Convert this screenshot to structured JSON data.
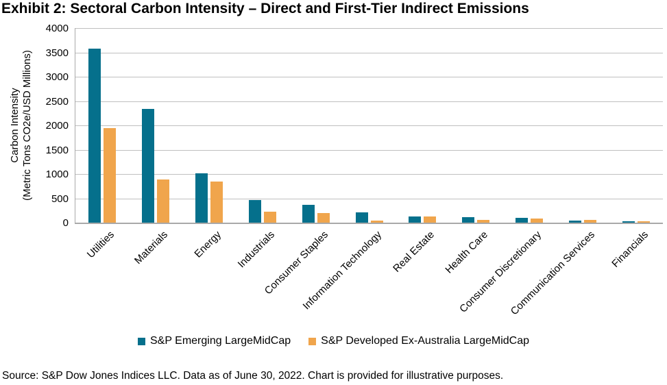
{
  "title": "Exhibit 2: Sectoral Carbon Intensity – Direct and First-Tier Indirect Emissions",
  "source_note": "Source: S&P Dow Jones Indices LLC. Data as of June 30, 2022. Chart is provided for illustrative purposes.",
  "chart_data": {
    "type": "bar",
    "title": "Exhibit 2: Sectoral Carbon Intensity – Direct and First-Tier Indirect Emissions",
    "ylabel_line1": "Carbon Intensity",
    "ylabel_line2": "(Metric Tons CO2e/USD Millions)",
    "xlabel": "",
    "ylim": [
      0,
      4000
    ],
    "yticks": [
      0,
      500,
      1000,
      1500,
      2000,
      2500,
      3000,
      3500,
      4000
    ],
    "grid": true,
    "legend_position": "bottom",
    "categories": [
      "Utilities",
      "Materials",
      "Energy",
      "Industrials",
      "Consumer Staples",
      "Information Technology",
      "Real Estate",
      "Health Care",
      "Consumer Discretionary",
      "Communication Services",
      "Financials"
    ],
    "series": [
      {
        "name": "S&P Emerging LargeMidCap",
        "color": "#05708C",
        "values": [
          3580,
          2340,
          1010,
          465,
          365,
          215,
          125,
          110,
          95,
          40,
          25
        ]
      },
      {
        "name": "S&P Developed Ex-Australia LargeMidCap",
        "color": "#F0A54C",
        "values": [
          1940,
          890,
          850,
          225,
          200,
          45,
          130,
          50,
          80,
          50,
          25
        ]
      }
    ],
    "grid_color": "#BFBFBF",
    "axis_color": "#A9A9A9"
  }
}
